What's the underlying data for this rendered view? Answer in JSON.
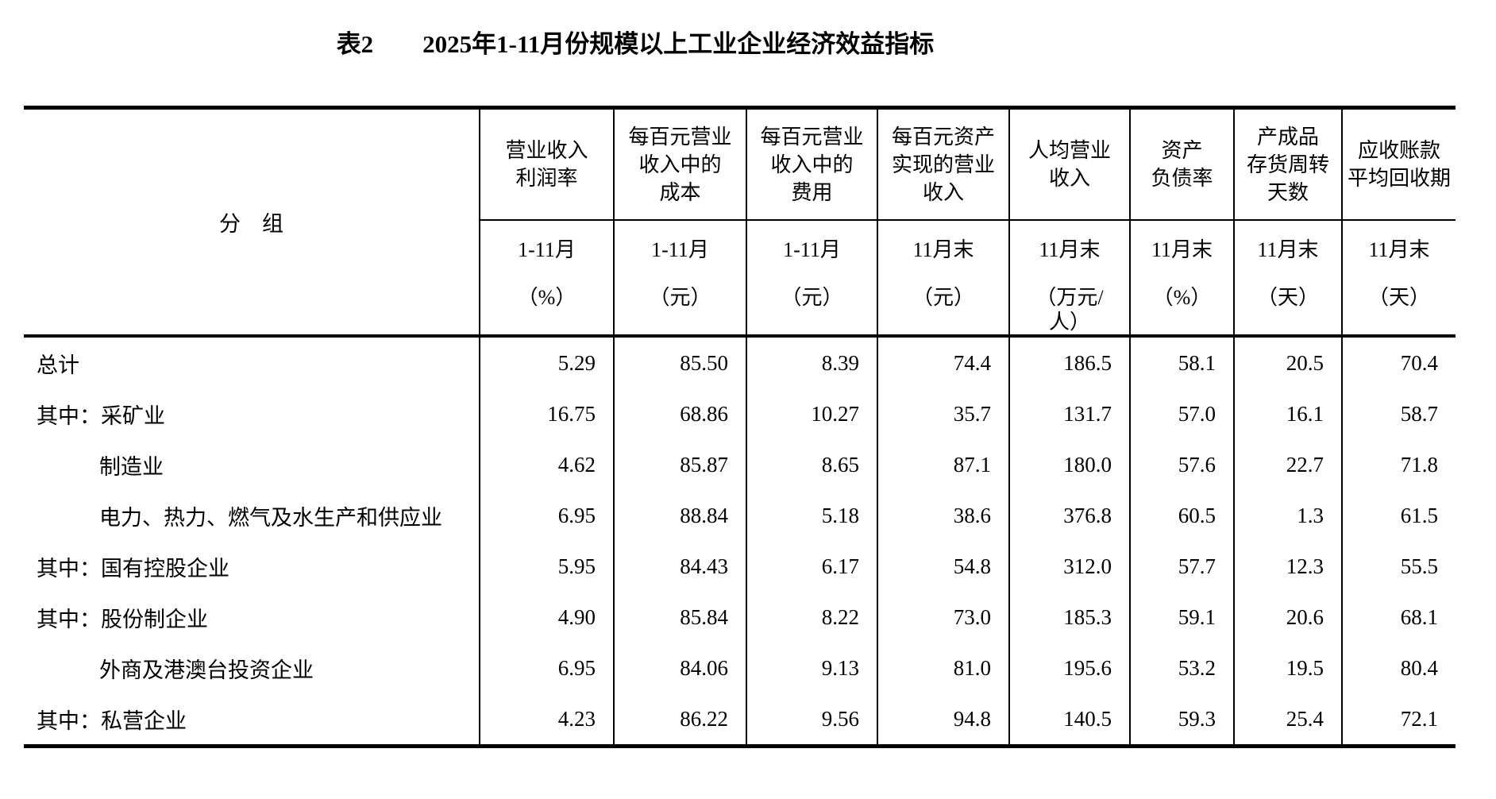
{
  "page": {
    "title": "表2　　2025年1-11月份规模以上工业企业经济效益指标"
  },
  "table": {
    "group_header": "分　组",
    "columns": [
      {
        "title": "营业收入\n利润率",
        "period": "1-11月",
        "unit": "（%）"
      },
      {
        "title": "每百元营业\n收入中的\n成本",
        "period": "1-11月",
        "unit": "（元）"
      },
      {
        "title": "每百元营业\n收入中的\n费用",
        "period": "1-11月",
        "unit": "（元）"
      },
      {
        "title": "每百元资产\n实现的营业\n收入",
        "period": "11月末",
        "unit": "（元）"
      },
      {
        "title": "人均营业\n收入",
        "period": "11月末",
        "unit": "（万元/\n人）"
      },
      {
        "title": "资产\n负债率",
        "period": "11月末",
        "unit": "（%）"
      },
      {
        "title": "产成品\n存货周转\n天数",
        "period": "11月末",
        "unit": "（天）"
      },
      {
        "title": "应收账款\n平均回收期",
        "period": "11月末",
        "unit": "（天）"
      }
    ],
    "rows": [
      {
        "prefix": "",
        "label": "总计",
        "indent": false,
        "values": [
          "5.29",
          "85.50",
          "8.39",
          "74.4",
          "186.5",
          "58.1",
          "20.5",
          "70.4"
        ]
      },
      {
        "prefix": "其中：",
        "label": "采矿业",
        "indent": false,
        "values": [
          "16.75",
          "68.86",
          "10.27",
          "35.7",
          "131.7",
          "57.0",
          "16.1",
          "58.7"
        ]
      },
      {
        "prefix": "",
        "label": "制造业",
        "indent": true,
        "values": [
          "4.62",
          "85.87",
          "8.65",
          "87.1",
          "180.0",
          "57.6",
          "22.7",
          "71.8"
        ]
      },
      {
        "prefix": "",
        "label": "电力、热力、燃气及水生产和供应业",
        "indent": true,
        "values": [
          "6.95",
          "88.84",
          "5.18",
          "38.6",
          "376.8",
          "60.5",
          "1.3",
          "61.5"
        ]
      },
      {
        "prefix": "其中：",
        "label": "国有控股企业",
        "indent": false,
        "values": [
          "5.95",
          "84.43",
          "6.17",
          "54.8",
          "312.0",
          "57.7",
          "12.3",
          "55.5"
        ]
      },
      {
        "prefix": "其中：",
        "label": "股份制企业",
        "indent": false,
        "values": [
          "4.90",
          "85.84",
          "8.22",
          "73.0",
          "185.3",
          "59.1",
          "20.6",
          "68.1"
        ]
      },
      {
        "prefix": "",
        "label": "外商及港澳台投资企业",
        "indent": true,
        "values": [
          "6.95",
          "84.06",
          "9.13",
          "81.0",
          "195.6",
          "53.2",
          "19.5",
          "80.4"
        ]
      },
      {
        "prefix": "其中：",
        "label": "私营企业",
        "indent": false,
        "values": [
          "4.23",
          "86.22",
          "9.56",
          "94.8",
          "140.5",
          "59.3",
          "25.4",
          "72.1"
        ]
      }
    ]
  }
}
